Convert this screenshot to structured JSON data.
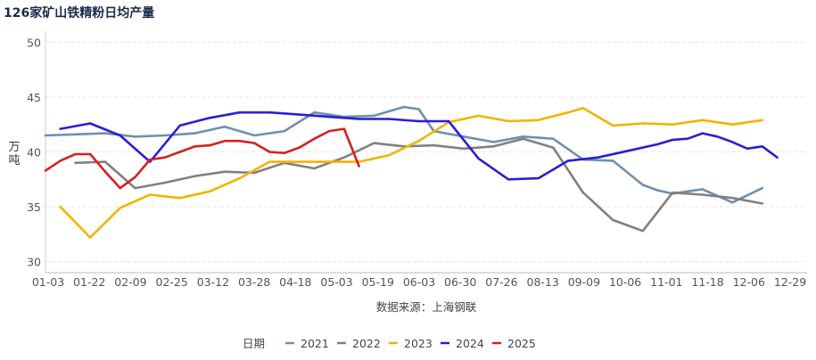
{
  "chart_data": {
    "type": "line",
    "title": "126家矿山铁精粉日均产量",
    "ylabel": "万吨",
    "xlabel": "数据来源：上海钢联",
    "ylim": [
      29,
      51
    ],
    "yticks": [
      30,
      35,
      40,
      45,
      50
    ],
    "xlim": [
      1,
      52
    ],
    "x_tick_labels": [
      "01-03",
      "01-22",
      "02-09",
      "02-25",
      "03-12",
      "03-28",
      "04-18",
      "05-03",
      "05-19",
      "06-03",
      "06-30",
      "07-26",
      "08-13",
      "09-09",
      "10-06",
      "11-01",
      "11-18",
      "12-06",
      "12-29"
    ],
    "legend_title": "日期",
    "series": [
      {
        "name": "2021",
        "color": "#6f8fb0",
        "x": [
          1,
          3,
          5,
          7,
          9,
          11,
          13,
          15,
          17,
          19,
          21,
          23,
          25,
          26,
          27,
          29,
          31,
          33,
          35,
          37,
          39,
          41,
          42,
          43,
          44,
          45,
          46,
          47,
          49,
          51,
          52
        ],
        "y": [
          41.5,
          41.6,
          41.7,
          41.4,
          41.5,
          41.7,
          42.3,
          41.5,
          41.9,
          43.6,
          43.2,
          43.3,
          44.1,
          43.9,
          41.9,
          41.4,
          40.9,
          41.4,
          41.2,
          39.3,
          39.2,
          37.0,
          36.5,
          36.2,
          36.4,
          36.6,
          36.0,
          35.4,
          36.7,
          null,
          null
        ]
      },
      {
        "name": "2022",
        "color": "#808080",
        "x": [
          3,
          5,
          7,
          9,
          11,
          13,
          15,
          17,
          19,
          21,
          23,
          25,
          27,
          29,
          31,
          33,
          35,
          37,
          39,
          41,
          43,
          45,
          47,
          49,
          52
        ],
        "y": [
          39.0,
          39.1,
          36.7,
          37.2,
          37.8,
          38.2,
          38.1,
          39.0,
          38.5,
          39.5,
          40.8,
          40.5,
          40.6,
          40.3,
          40.5,
          41.2,
          40.4,
          36.3,
          33.8,
          32.8,
          36.3,
          36.1,
          35.8,
          35.3,
          null
        ]
      },
      {
        "name": "2023",
        "color": "#f2b400",
        "x": [
          2,
          4,
          6,
          8,
          10,
          12,
          14,
          16,
          18,
          20,
          22,
          24,
          26,
          28,
          30,
          32,
          34,
          36,
          37,
          39,
          41,
          43,
          45,
          47,
          49
        ],
        "y": [
          35.0,
          32.2,
          34.9,
          36.1,
          35.8,
          36.4,
          37.6,
          39.1,
          39.1,
          39.1,
          39.1,
          39.7,
          41.0,
          42.7,
          43.3,
          42.8,
          42.9,
          43.6,
          44.0,
          42.4,
          42.6,
          42.5,
          42.9,
          42.5,
          42.9
        ]
      },
      {
        "name": "2024",
        "color": "#2a1fd6",
        "x": [
          2,
          4,
          6,
          8,
          10,
          12,
          14,
          16,
          18,
          20,
          22,
          24,
          26,
          28,
          30,
          32,
          34,
          36,
          38,
          40,
          42,
          43,
          44,
          45,
          46,
          47,
          48,
          49,
          50
        ],
        "y": [
          42.1,
          42.6,
          41.5,
          39.1,
          42.4,
          43.1,
          43.6,
          43.6,
          43.4,
          43.2,
          43.0,
          43.0,
          42.8,
          42.8,
          39.4,
          37.5,
          37.6,
          39.2,
          39.5,
          40.1,
          40.7,
          41.1,
          41.2,
          41.7,
          41.4,
          40.9,
          40.3,
          40.5,
          39.5
        ]
      },
      {
        "name": "2025",
        "color": "#d62020",
        "x": [
          1,
          2,
          3,
          4,
          5,
          6,
          7,
          8,
          9,
          10,
          11,
          12,
          13,
          14,
          15,
          16,
          17,
          18,
          19,
          20,
          21,
          22
        ],
        "y": [
          38.3,
          39.2,
          39.8,
          39.8,
          38.2,
          36.7,
          37.7,
          39.3,
          39.5,
          40.0,
          40.5,
          40.6,
          41.0,
          41.0,
          40.8,
          40.0,
          39.9,
          40.4,
          41.2,
          41.9,
          42.1,
          38.7
        ]
      }
    ]
  }
}
